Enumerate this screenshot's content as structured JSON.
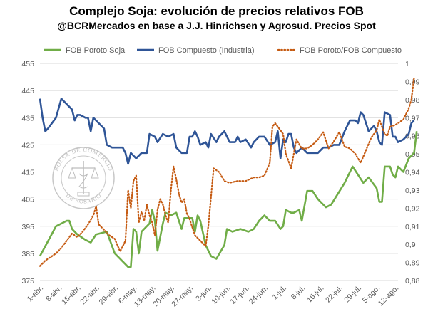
{
  "title": "Complejo Soja: evolución de precios relativos FOB",
  "subtitle": "@BCRMercados en base a J.J. Hinrichsen y Agrosud. Precios Spot",
  "watermark": {
    "text_top": "BOLSA DE COMERCIO",
    "text_bottom": "DE ROSARIO"
  },
  "chart_data": {
    "type": "line",
    "title": "Complejo Soja: evolución de precios relativos FOB",
    "subtitle": "@BCRMercados en base a J.J. Hinrichsen y Agrosud. Precios Spot",
    "x_tick_labels": [
      "1-abr.",
      "8-abr.",
      "15-abr.",
      "22-abr.",
      "29-abr.",
      "6-may.",
      "13-may.",
      "20-may.",
      "27-may.",
      "3-jun.",
      "10-jun.",
      "17-jun.",
      "24-jun.",
      "1-jul.",
      "8-jul.",
      "15-jul.",
      "22-jul.",
      "29-jul.",
      "5-ago.",
      "12-ago."
    ],
    "y_left": {
      "min": 375,
      "max": 455,
      "ticks": [
        375,
        385,
        395,
        405,
        415,
        425,
        435,
        445,
        455
      ]
    },
    "y_right": {
      "min": 0.88,
      "max": 1.0,
      "ticks": [
        "0,88",
        "0,89",
        "0,9",
        "0,91",
        "0,92",
        "0,93",
        "0,94",
        "0,95",
        "0,96",
        "0,97",
        "0,98",
        "0,99",
        "1"
      ]
    },
    "x_range_days": [
      0,
      134
    ],
    "grid": "horizontal",
    "legend_position": "top",
    "series": [
      {
        "name": "FOB Poroto Soja",
        "axis": "left",
        "color": "#70ad47",
        "style": "solid",
        "points": [
          [
            0,
            384
          ],
          [
            6,
            395
          ],
          [
            10,
            397
          ],
          [
            11,
            397
          ],
          [
            12,
            394
          ],
          [
            14,
            392
          ],
          [
            17,
            390
          ],
          [
            19,
            389
          ],
          [
            21,
            392
          ],
          [
            25,
            393
          ],
          [
            28,
            385
          ],
          [
            31,
            382
          ],
          [
            33,
            380
          ],
          [
            34,
            380
          ],
          [
            35,
            394
          ],
          [
            36,
            393
          ],
          [
            37,
            385
          ],
          [
            38,
            393
          ],
          [
            41,
            396
          ],
          [
            42,
            401
          ],
          [
            43,
            397
          ],
          [
            44,
            386
          ],
          [
            46,
            396
          ],
          [
            47,
            400
          ],
          [
            49,
            399
          ],
          [
            51,
            400
          ],
          [
            53,
            394
          ],
          [
            54,
            398
          ],
          [
            56,
            398
          ],
          [
            57,
            398
          ],
          [
            58,
            393
          ],
          [
            59,
            399
          ],
          [
            60,
            397
          ],
          [
            62,
            388
          ],
          [
            64,
            384
          ],
          [
            66,
            383
          ],
          [
            69,
            388
          ],
          [
            70,
            394
          ],
          [
            72,
            393
          ],
          [
            75,
            394
          ],
          [
            78,
            393
          ],
          [
            80,
            394
          ],
          [
            82,
            397
          ],
          [
            84,
            399
          ],
          [
            86,
            397
          ],
          [
            88,
            397
          ],
          [
            90,
            394
          ],
          [
            91,
            395
          ],
          [
            92,
            401
          ],
          [
            94,
            400
          ],
          [
            95,
            400
          ],
          [
            97,
            401
          ],
          [
            98,
            397
          ],
          [
            100,
            408
          ],
          [
            102,
            408
          ],
          [
            104,
            405
          ],
          [
            107,
            402
          ],
          [
            109,
            403
          ],
          [
            114,
            411
          ],
          [
            117,
            417
          ],
          [
            119,
            414
          ],
          [
            121,
            411
          ],
          [
            123,
            413
          ],
          [
            126,
            409
          ],
          [
            127,
            404
          ],
          [
            128,
            404
          ],
          [
            129,
            417
          ],
          [
            131,
            417
          ],
          [
            132,
            414
          ],
          [
            133,
            413
          ],
          [
            134,
            417
          ],
          [
            136,
            415
          ],
          [
            138,
            420
          ],
          [
            140,
            422
          ],
          [
            141,
            430
          ]
        ]
      },
      {
        "name": "FOB Compuesto (Industria)",
        "axis": "left",
        "color": "#2f5597",
        "style": "solid",
        "points": [
          [
            0,
            442
          ],
          [
            1,
            435
          ],
          [
            2,
            430
          ],
          [
            3,
            431
          ],
          [
            6,
            435
          ],
          [
            8,
            442
          ],
          [
            10,
            440
          ],
          [
            12,
            438
          ],
          [
            13,
            434
          ],
          [
            14,
            436
          ],
          [
            15,
            436
          ],
          [
            17,
            435
          ],
          [
            18,
            435
          ],
          [
            19,
            430
          ],
          [
            20,
            435
          ],
          [
            22,
            433
          ],
          [
            24,
            431
          ],
          [
            25,
            425
          ],
          [
            27,
            424
          ],
          [
            29,
            424
          ],
          [
            31,
            424
          ],
          [
            32,
            422
          ],
          [
            33,
            418
          ],
          [
            34,
            422
          ],
          [
            36,
            420
          ],
          [
            38,
            422
          ],
          [
            40,
            422
          ],
          [
            41,
            429
          ],
          [
            43,
            428
          ],
          [
            44,
            426
          ],
          [
            46,
            429
          ],
          [
            48,
            428
          ],
          [
            50,
            429
          ],
          [
            51,
            424
          ],
          [
            53,
            422
          ],
          [
            55,
            422
          ],
          [
            56,
            428
          ],
          [
            57,
            428
          ],
          [
            58,
            430
          ],
          [
            59,
            428
          ],
          [
            60,
            425
          ],
          [
            62,
            426
          ],
          [
            63,
            424
          ],
          [
            64,
            429
          ],
          [
            66,
            426
          ],
          [
            67,
            428
          ],
          [
            69,
            430
          ],
          [
            71,
            426
          ],
          [
            73,
            426
          ],
          [
            74,
            428
          ],
          [
            75,
            426
          ],
          [
            77,
            427
          ],
          [
            79,
            424
          ],
          [
            80,
            426
          ],
          [
            82,
            428
          ],
          [
            84,
            428
          ],
          [
            86,
            425
          ],
          [
            88,
            426
          ],
          [
            89,
            430
          ],
          [
            90,
            420
          ],
          [
            91,
            427
          ],
          [
            92,
            426
          ],
          [
            93,
            429
          ],
          [
            94,
            429
          ],
          [
            95,
            424
          ],
          [
            96,
            422
          ],
          [
            98,
            424
          ],
          [
            100,
            422
          ],
          [
            102,
            422
          ],
          [
            104,
            422
          ],
          [
            106,
            424
          ],
          [
            108,
            424
          ],
          [
            110,
            425
          ],
          [
            112,
            425
          ],
          [
            114,
            430
          ],
          [
            116,
            434
          ],
          [
            118,
            434
          ],
          [
            119,
            433
          ],
          [
            120,
            437
          ],
          [
            121,
            436
          ],
          [
            123,
            430
          ],
          [
            124,
            431
          ],
          [
            125,
            432
          ],
          [
            126,
            430
          ],
          [
            127,
            426
          ],
          [
            128,
            425
          ],
          [
            129,
            437
          ],
          [
            131,
            436
          ],
          [
            132,
            428
          ],
          [
            133,
            428
          ],
          [
            134,
            426
          ],
          [
            136,
            427
          ],
          [
            138,
            429
          ],
          [
            139,
            433
          ],
          [
            140,
            434
          ]
        ]
      },
      {
        "name": "FOB Poroto/FOB Compuesto",
        "axis": "right",
        "color": "#c55a11",
        "style": "dotted",
        "points": [
          [
            0,
            0.888
          ],
          [
            2,
            0.891
          ],
          [
            4,
            0.893
          ],
          [
            6,
            0.895
          ],
          [
            8,
            0.898
          ],
          [
            10,
            0.902
          ],
          [
            12,
            0.906
          ],
          [
            14,
            0.904
          ],
          [
            16,
            0.907
          ],
          [
            18,
            0.911
          ],
          [
            20,
            0.916
          ],
          [
            21,
            0.921
          ],
          [
            22,
            0.911
          ],
          [
            24,
            0.908
          ],
          [
            26,
            0.905
          ],
          [
            28,
            0.903
          ],
          [
            30,
            0.896
          ],
          [
            32,
            0.902
          ],
          [
            33,
            0.93
          ],
          [
            34,
            0.92
          ],
          [
            35,
            0.935
          ],
          [
            36,
            0.938
          ],
          [
            37,
            0.912
          ],
          [
            38,
            0.918
          ],
          [
            39,
            0.913
          ],
          [
            40,
            0.922
          ],
          [
            41,
            0.916
          ],
          [
            42,
            0.912
          ],
          [
            43,
            0.905
          ],
          [
            44,
            0.919
          ],
          [
            45,
            0.925
          ],
          [
            46,
            0.922
          ],
          [
            47,
            0.916
          ],
          [
            48,
            0.912
          ],
          [
            49,
            0.93
          ],
          [
            50,
            0.943
          ],
          [
            51,
            0.936
          ],
          [
            52,
            0.928
          ],
          [
            53,
            0.923
          ],
          [
            54,
            0.925
          ],
          [
            55,
            0.917
          ],
          [
            56,
            0.914
          ],
          [
            58,
            0.905
          ],
          [
            60,
            0.902
          ],
          [
            62,
            0.899
          ],
          [
            63,
            0.91
          ],
          [
            65,
            0.942
          ],
          [
            67,
            0.94
          ],
          [
            69,
            0.935
          ],
          [
            71,
            0.934
          ],
          [
            74,
            0.935
          ],
          [
            77,
            0.935
          ],
          [
            80,
            0.937
          ],
          [
            82,
            0.937
          ],
          [
            84,
            0.938
          ],
          [
            86,
            0.945
          ],
          [
            87,
            0.965
          ],
          [
            88,
            0.967
          ],
          [
            90,
            0.963
          ],
          [
            91,
            0.961
          ],
          [
            92,
            0.95
          ],
          [
            94,
            0.942
          ],
          [
            96,
            0.958
          ],
          [
            98,
            0.953
          ],
          [
            100,
            0.953
          ],
          [
            102,
            0.955
          ],
          [
            104,
            0.958
          ],
          [
            106,
            0.962
          ],
          [
            108,
            0.953
          ],
          [
            110,
            0.957
          ],
          [
            112,
            0.962
          ],
          [
            114,
            0.954
          ],
          [
            116,
            0.953
          ],
          [
            118,
            0.95
          ],
          [
            120,
            0.945
          ],
          [
            122,
            0.952
          ],
          [
            124,
            0.959
          ],
          [
            126,
            0.963
          ],
          [
            127,
            0.969
          ],
          [
            128,
            0.965
          ],
          [
            129,
            0.961
          ],
          [
            130,
            0.96
          ],
          [
            131,
            0.965
          ],
          [
            133,
            0.966
          ],
          [
            135,
            0.968
          ],
          [
            136,
            0.969
          ],
          [
            138,
            0.975
          ],
          [
            139,
            0.98
          ],
          [
            140,
            0.992
          ]
        ]
      }
    ]
  }
}
